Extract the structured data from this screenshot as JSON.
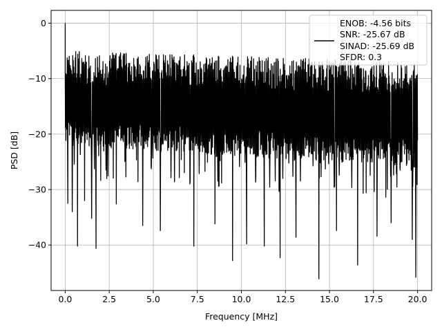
{
  "chart_data": {
    "type": "line",
    "title": "",
    "xlabel": "Frequency [MHz]",
    "ylabel": "PSD [dB]",
    "xlim": [
      -0.8,
      20.8
    ],
    "ylim": [
      -48.2,
      2.3
    ],
    "x_ticks": [
      0.0,
      2.5,
      5.0,
      7.5,
      10.0,
      12.5,
      15.0,
      17.5,
      20.0
    ],
    "x_tick_labels": [
      "0.0",
      "2.5",
      "5.0",
      "7.5",
      "10.0",
      "12.5",
      "15.0",
      "17.5",
      "20.0"
    ],
    "y_ticks": [
      0,
      -10,
      -20,
      -30,
      -40
    ],
    "y_tick_labels": [
      "0",
      "−10",
      "−20",
      "−30",
      "−40"
    ],
    "grid": true,
    "legend_position": "top-right",
    "series": [
      {
        "color": "#000000",
        "x_range": [
          0.0,
          20.0
        ],
        "peak": {
          "x": 0.0,
          "y": 0.0
        },
        "dense_band_upper": [
          -5,
          -9
        ],
        "dense_band_lower": [
          -22,
          -26
        ],
        "dips": [
          {
            "x": 0.15,
            "y": -32.5
          },
          {
            "x": 0.4,
            "y": -34.0
          },
          {
            "x": 0.7,
            "y": -40.2
          },
          {
            "x": 1.1,
            "y": -32.0
          },
          {
            "x": 1.5,
            "y": -35.2
          },
          {
            "x": 1.75,
            "y": -40.6
          },
          {
            "x": 2.9,
            "y": -32.6
          },
          {
            "x": 4.4,
            "y": -36.5
          },
          {
            "x": 5.4,
            "y": -37.4
          },
          {
            "x": 7.3,
            "y": -40.2
          },
          {
            "x": 8.5,
            "y": -36.2
          },
          {
            "x": 9.5,
            "y": -42.8
          },
          {
            "x": 10.3,
            "y": -39.8
          },
          {
            "x": 11.3,
            "y": -40.2
          },
          {
            "x": 12.2,
            "y": -42.3
          },
          {
            "x": 13.1,
            "y": -38.6
          },
          {
            "x": 14.4,
            "y": -46.1
          },
          {
            "x": 15.4,
            "y": -37.4
          },
          {
            "x": 16.6,
            "y": -43.6
          },
          {
            "x": 17.7,
            "y": -38.4
          },
          {
            "x": 18.5,
            "y": -36.0
          },
          {
            "x": 19.7,
            "y": -39.0
          },
          {
            "x": 19.9,
            "y": -45.8
          }
        ]
      }
    ],
    "legend": [
      {
        "color": "#000000",
        "lines": [
          "ENOB: -4.56 bits",
          "SNR: -25.67 dB",
          "SINAD: -25.69 dB",
          "SFDR: 0.3"
        ]
      }
    ]
  }
}
